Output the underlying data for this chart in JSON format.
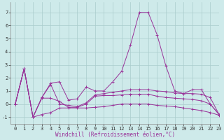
{
  "xlabel": "Windchill (Refroidissement éolien,°C)",
  "bg_color": "#ceeaea",
  "grid_color": "#aacccc",
  "line_color": "#993399",
  "xlim": [
    -0.5,
    23
  ],
  "ylim": [
    -1.5,
    7.8
  ],
  "yticks": [
    -1,
    0,
    1,
    2,
    3,
    4,
    5,
    6,
    7
  ],
  "xticks": [
    0,
    1,
    2,
    3,
    4,
    5,
    6,
    7,
    8,
    9,
    10,
    11,
    12,
    13,
    14,
    15,
    16,
    17,
    18,
    19,
    20,
    21,
    22,
    23
  ],
  "series": [
    [
      0,
      2.7,
      -1.0,
      0.5,
      1.6,
      1.7,
      0.3,
      0.4,
      1.3,
      1.0,
      1.0,
      1.7,
      2.5,
      4.5,
      7.0,
      7.0,
      5.3,
      2.9,
      1.0,
      0.8,
      1.1,
      1.1,
      0.0,
      -0.8
    ],
    [
      0,
      2.7,
      -1.0,
      0.5,
      1.5,
      0.0,
      -0.1,
      -0.2,
      0.1,
      0.7,
      0.8,
      0.9,
      1.0,
      1.1,
      1.1,
      1.1,
      1.0,
      0.95,
      0.85,
      0.8,
      0.8,
      0.75,
      0.5,
      -0.8
    ],
    [
      0,
      2.7,
      -1.0,
      0.45,
      0.45,
      0.2,
      -0.25,
      -0.25,
      0.0,
      0.6,
      0.65,
      0.65,
      0.7,
      0.75,
      0.75,
      0.75,
      0.6,
      0.5,
      0.45,
      0.4,
      0.35,
      0.25,
      0.0,
      -0.8
    ],
    [
      0,
      2.7,
      -1.0,
      -0.8,
      -0.65,
      -0.3,
      -0.3,
      -0.3,
      -0.3,
      -0.25,
      -0.2,
      -0.1,
      0.0,
      0.0,
      0.0,
      0.0,
      -0.1,
      -0.15,
      -0.2,
      -0.3,
      -0.4,
      -0.5,
      -0.65,
      -0.85
    ]
  ],
  "xlabel_fontsize": 5.5,
  "tick_fontsize": 5.0
}
